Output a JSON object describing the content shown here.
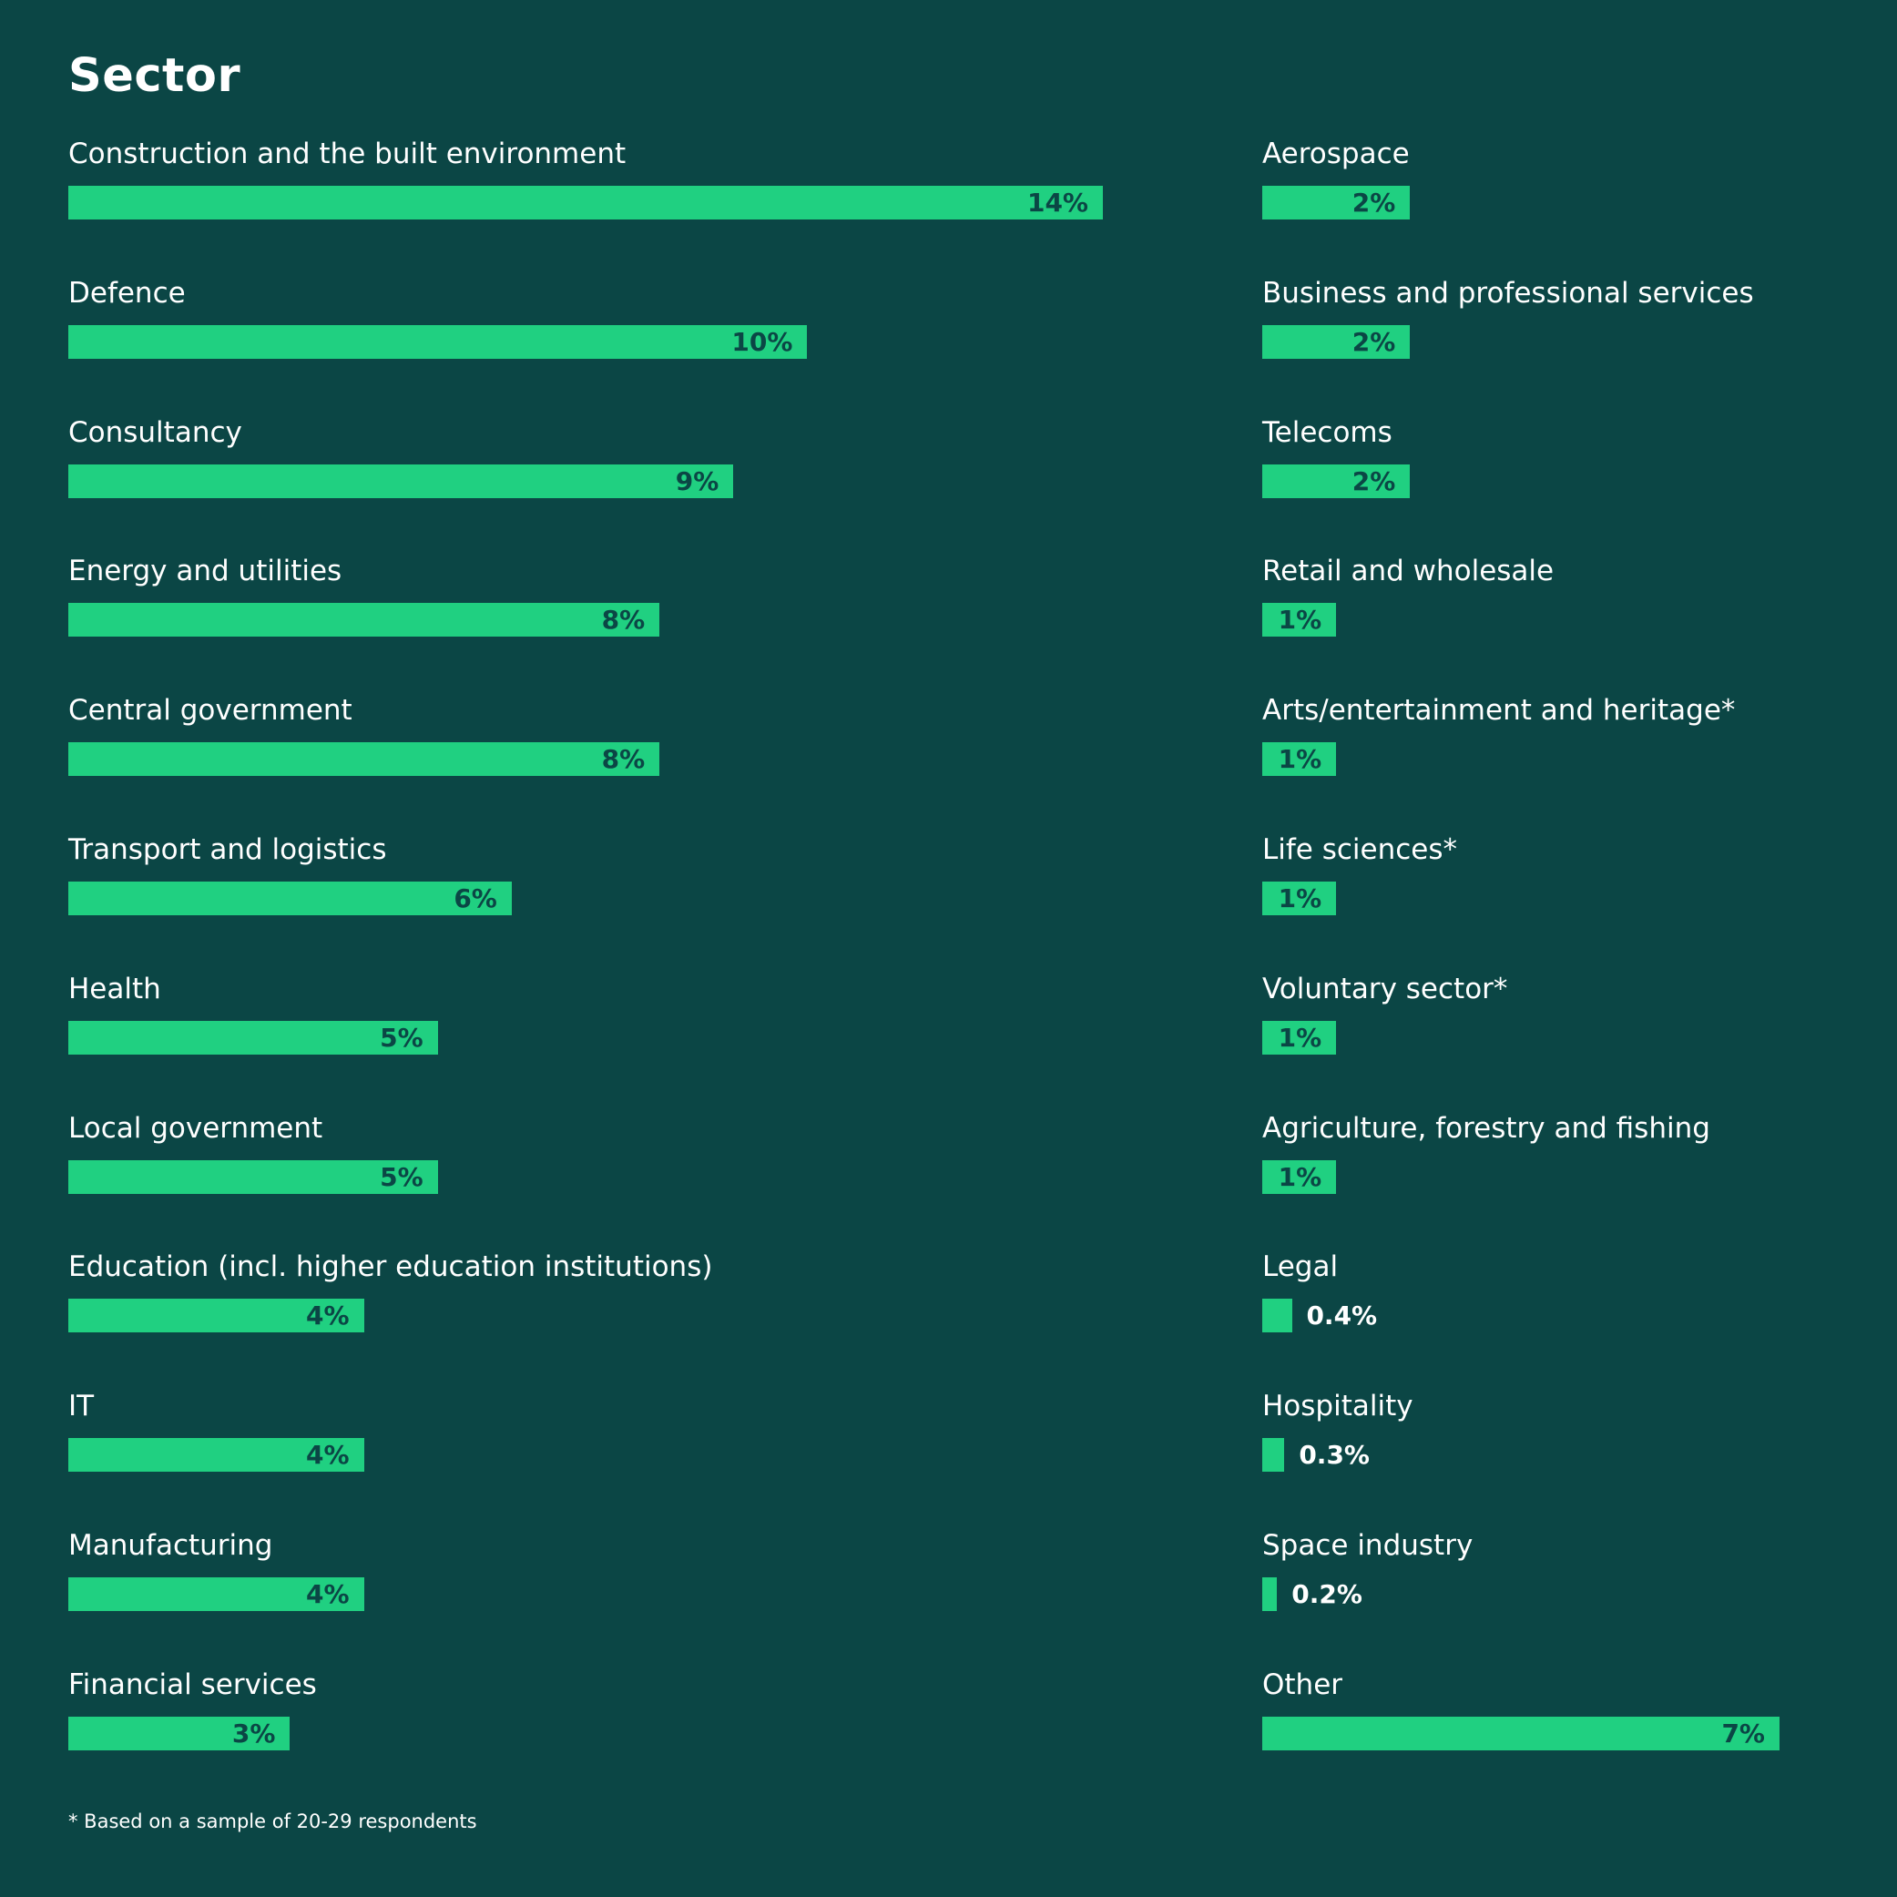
{
  "chart_data": {
    "type": "bar",
    "title": "Sector",
    "categories": [
      "Construction and the built environment",
      "Defence",
      "Consultancy",
      "Energy and utilities",
      "Central government",
      "Transport and logistics",
      "Health",
      "Local government",
      "Education (incl. higher education institutions)",
      "IT",
      "Manufacturing",
      "Financial services",
      "Aerospace",
      "Business and professional services",
      "Telecoms",
      "Retail and wholesale",
      "Arts/entertainment and heritage*",
      "Life sciences*",
      "Voluntary sector*",
      "Agriculture, forestry and fishing",
      "Legal",
      "Hospitality",
      "Space industry",
      "Other"
    ],
    "values": [
      14,
      10,
      9,
      8,
      8,
      6,
      5,
      5,
      4,
      4,
      4,
      3,
      2,
      2,
      2,
      1,
      1,
      1,
      1,
      1,
      0.4,
      0.3,
      0.2,
      7
    ],
    "value_labels": [
      "14%",
      "10%",
      "9%",
      "8%",
      "8%",
      "6%",
      "5%",
      "5%",
      "4%",
      "4%",
      "4%",
      "3%",
      "2%",
      "2%",
      "2%",
      "1%",
      "1%",
      "1%",
      "1%",
      "1%",
      "0.4%",
      "0.3%",
      "0.2%",
      "7%"
    ],
    "xlim": [
      0,
      14
    ],
    "grid": false,
    "colors": {
      "background": "#0b4645",
      "bar": "#20d081",
      "label_inside": "#0b4645",
      "label_outside": "#ffffff",
      "text": "#ffffff"
    }
  },
  "footnote": "* Based on a sample of 20-29 respondents"
}
